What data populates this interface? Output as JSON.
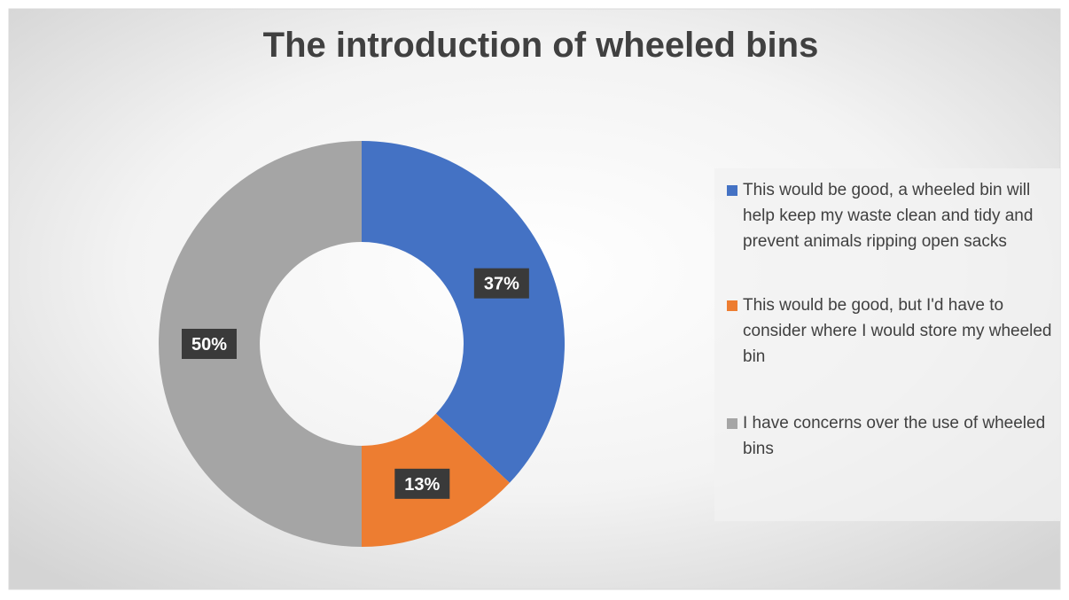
{
  "chart_data": {
    "type": "donut",
    "title": "The introduction of wheeled bins",
    "categories": [
      "This would be good, a wheeled bin will help keep my waste clean and tidy and prevent animals ripping open sacks",
      "This would be good, but I'd have to consider where I would store my wheeled bin",
      "I have concerns over the use of wheeled bins"
    ],
    "values": [
      37,
      13,
      50
    ],
    "value_labels": [
      "37%",
      "13%",
      "50%"
    ],
    "colors": [
      "#4472c4",
      "#ed7d31",
      "#a5a5a5"
    ],
    "legend": "right"
  }
}
